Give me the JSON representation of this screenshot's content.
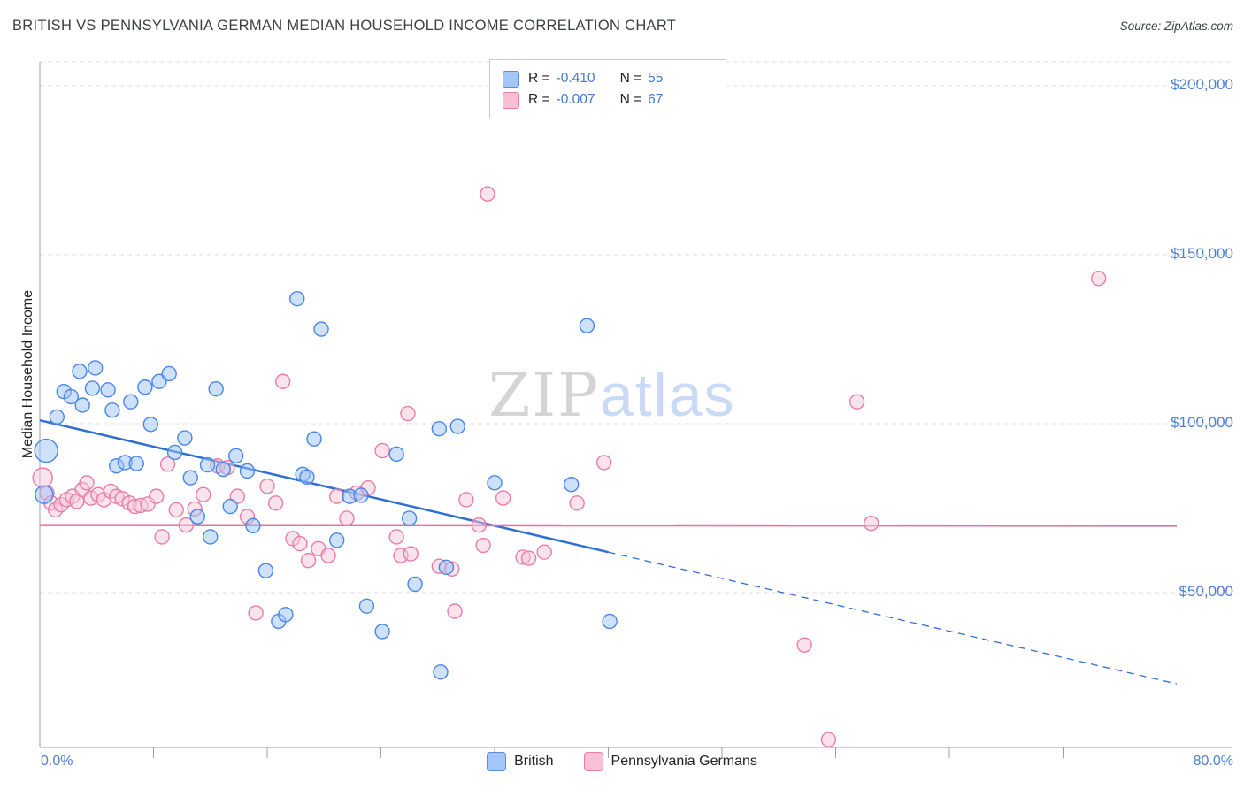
{
  "header": {
    "title": "BRITISH VS PENNSYLVANIA GERMAN MEDIAN HOUSEHOLD INCOME CORRELATION CHART",
    "source": "Source: ZipAtlas.com"
  },
  "watermark": {
    "zip": "ZIP",
    "atlas": "atlas"
  },
  "legend": {
    "rows": [
      {
        "series": "British",
        "r_label": "R =",
        "r_value": "-0.410",
        "n_label": "N =",
        "n_value": "55"
      },
      {
        "series": "Pennsylvania Germans",
        "r_label": "R =",
        "r_value": "-0.007",
        "n_label": "N =",
        "n_value": "67"
      }
    ]
  },
  "bottom_legend": {
    "items": [
      {
        "label": "British"
      },
      {
        "label": "Pennsylvania Germans"
      }
    ]
  },
  "colors": {
    "accent_blue": "#4a7fd4",
    "british_stroke": "#4a86e8",
    "british_fill": "#9ec3f7",
    "british_line": "#2f6fd0",
    "pagerman_stroke": "#e87da8",
    "pagerman_fill": "#f8c8da",
    "pagerman_line": "#e8719e",
    "grid": "#e2e2e2",
    "axis": "#9aa0a6"
  },
  "chart_data": {
    "type": "scatter",
    "title": "British vs Pennsylvania German Median Household Income Correlation Chart",
    "xlabel": "",
    "ylabel": "Median Household Income",
    "grid": true,
    "legend_position": "top-center",
    "x_axis": {
      "min": 0,
      "max": 80,
      "min_label": "0.0%",
      "max_label": "80.0%",
      "tick_step": 8,
      "unit": "%"
    },
    "y_axis": {
      "min": 4000,
      "max": 207000,
      "unit": "USD",
      "ticks": [
        {
          "value": 200000,
          "label": "$200,000"
        },
        {
          "value": 150000,
          "label": "$150,000"
        },
        {
          "value": 100000,
          "label": "$100,000"
        },
        {
          "value": 50000,
          "label": "$50,000"
        }
      ]
    },
    "series": [
      {
        "name": "British",
        "R": -0.41,
        "N": 55,
        "stroke": "#4a86e8",
        "fill": "#9ec3f7",
        "points": [
          [
            0.45,
            92000,
            13
          ],
          [
            0.3,
            79000,
            10
          ],
          [
            1.2,
            102000,
            8
          ],
          [
            1.7,
            109500,
            8
          ],
          [
            2.2,
            108000,
            8
          ],
          [
            2.8,
            115500,
            8
          ],
          [
            3.0,
            105500,
            8
          ],
          [
            3.7,
            110500,
            8
          ],
          [
            3.9,
            116500,
            8
          ],
          [
            4.8,
            110000,
            8
          ],
          [
            5.1,
            104000,
            8
          ],
          [
            5.4,
            87500,
            8
          ],
          [
            6.0,
            88500,
            8
          ],
          [
            6.8,
            88200,
            8
          ],
          [
            6.4,
            106500,
            8
          ],
          [
            7.4,
            110800,
            8
          ],
          [
            7.8,
            99800,
            8
          ],
          [
            8.4,
            112500,
            8
          ],
          [
            9.1,
            114800,
            8
          ],
          [
            9.5,
            91500,
            8
          ],
          [
            10.2,
            95800,
            8
          ],
          [
            10.6,
            84000,
            8
          ],
          [
            11.1,
            72500,
            8
          ],
          [
            11.8,
            87800,
            8
          ],
          [
            12.4,
            110300,
            8
          ],
          [
            12.9,
            86500,
            8
          ],
          [
            12.0,
            66500,
            8
          ],
          [
            13.4,
            75500,
            8
          ],
          [
            13.8,
            90500,
            8
          ],
          [
            14.6,
            86000,
            8
          ],
          [
            15.9,
            56500,
            8
          ],
          [
            16.8,
            41500,
            8
          ],
          [
            17.3,
            43500,
            8
          ],
          [
            15.0,
            69800,
            8
          ],
          [
            18.1,
            137000,
            8
          ],
          [
            19.8,
            128000,
            8
          ],
          [
            18.5,
            85000,
            8
          ],
          [
            18.8,
            84200,
            8
          ],
          [
            19.3,
            95500,
            8
          ],
          [
            20.9,
            65500,
            8
          ],
          [
            23.0,
            46000,
            8
          ],
          [
            24.1,
            38500,
            8
          ],
          [
            21.8,
            78500,
            8
          ],
          [
            22.6,
            78800,
            8
          ],
          [
            25.1,
            91000,
            8
          ],
          [
            26.4,
            52500,
            8
          ],
          [
            28.1,
            98500,
            8
          ],
          [
            29.4,
            99200,
            8
          ],
          [
            28.2,
            26500,
            8
          ],
          [
            28.6,
            57500,
            8
          ],
          [
            32.0,
            82500,
            8
          ],
          [
            37.4,
            82000,
            8
          ],
          [
            38.5,
            129000,
            8
          ],
          [
            40.1,
            41500,
            8
          ],
          [
            26.0,
            72000,
            8
          ]
        ]
      },
      {
        "name": "Pennsylvania Germans",
        "R": -0.007,
        "N": 67,
        "stroke": "#e87da8",
        "fill": "#f8c8da",
        "points": [
          [
            0.2,
            84000,
            11
          ],
          [
            0.5,
            79500,
            8
          ],
          [
            0.8,
            76500,
            8
          ],
          [
            1.1,
            74500,
            8
          ],
          [
            1.5,
            76000,
            8
          ],
          [
            1.9,
            77500,
            8
          ],
          [
            2.3,
            78500,
            8
          ],
          [
            2.6,
            77000,
            8
          ],
          [
            3.0,
            80500,
            8
          ],
          [
            3.3,
            82500,
            8
          ],
          [
            3.6,
            78000,
            8
          ],
          [
            4.1,
            79000,
            8
          ],
          [
            4.5,
            77500,
            8
          ],
          [
            5.0,
            80000,
            8
          ],
          [
            5.4,
            78500,
            8
          ],
          [
            5.8,
            77800,
            8
          ],
          [
            6.3,
            76500,
            8
          ],
          [
            6.7,
            75500,
            8
          ],
          [
            7.1,
            75800,
            8
          ],
          [
            7.6,
            76200,
            8
          ],
          [
            8.2,
            78500,
            8
          ],
          [
            8.6,
            66500,
            8
          ],
          [
            9.0,
            88000,
            8
          ],
          [
            9.6,
            74500,
            8
          ],
          [
            10.3,
            70000,
            8
          ],
          [
            10.9,
            74800,
            8
          ],
          [
            11.5,
            79000,
            8
          ],
          [
            12.5,
            87500,
            8
          ],
          [
            13.2,
            87000,
            8
          ],
          [
            13.9,
            78500,
            8
          ],
          [
            14.6,
            72500,
            8
          ],
          [
            15.2,
            44000,
            8
          ],
          [
            16.0,
            81500,
            8
          ],
          [
            16.6,
            76500,
            8
          ],
          [
            17.1,
            112500,
            8
          ],
          [
            17.8,
            66000,
            8
          ],
          [
            18.3,
            64500,
            8
          ],
          [
            18.9,
            59500,
            8
          ],
          [
            19.6,
            63000,
            8
          ],
          [
            20.3,
            61000,
            8
          ],
          [
            20.9,
            78500,
            8
          ],
          [
            21.6,
            72000,
            8
          ],
          [
            22.3,
            79500,
            8
          ],
          [
            23.1,
            81000,
            8
          ],
          [
            24.1,
            92000,
            8
          ],
          [
            25.1,
            66500,
            8
          ],
          [
            25.4,
            61000,
            8
          ],
          [
            26.1,
            61500,
            8
          ],
          [
            25.9,
            103000,
            8
          ],
          [
            28.1,
            57800,
            8
          ],
          [
            29.0,
            57000,
            8
          ],
          [
            29.2,
            44500,
            8
          ],
          [
            30.0,
            77500,
            8
          ],
          [
            30.9,
            70000,
            8
          ],
          [
            31.2,
            64000,
            8
          ],
          [
            31.5,
            168000,
            8
          ],
          [
            32.6,
            78000,
            8
          ],
          [
            34.0,
            60500,
            8
          ],
          [
            34.4,
            60200,
            8
          ],
          [
            35.5,
            62000,
            8
          ],
          [
            37.8,
            76500,
            8
          ],
          [
            39.7,
            88500,
            8
          ],
          [
            53.8,
            34500,
            8
          ],
          [
            55.5,
            6500,
            8
          ],
          [
            57.5,
            106500,
            8
          ],
          [
            58.5,
            70500,
            8
          ],
          [
            74.5,
            143000,
            8
          ]
        ]
      }
    ],
    "trend_lines": [
      {
        "series": "British",
        "color": "#2f6fd0",
        "solid": [
          [
            0,
            101000
          ],
          [
            40,
            62000
          ]
        ],
        "dashed": [
          [
            40,
            62000
          ],
          [
            80,
            23000
          ]
        ]
      },
      {
        "series": "Pennsylvania Germans",
        "color": "#e8719e",
        "solid": [
          [
            0,
            70000
          ],
          [
            80,
            69800
          ]
        ]
      }
    ]
  }
}
